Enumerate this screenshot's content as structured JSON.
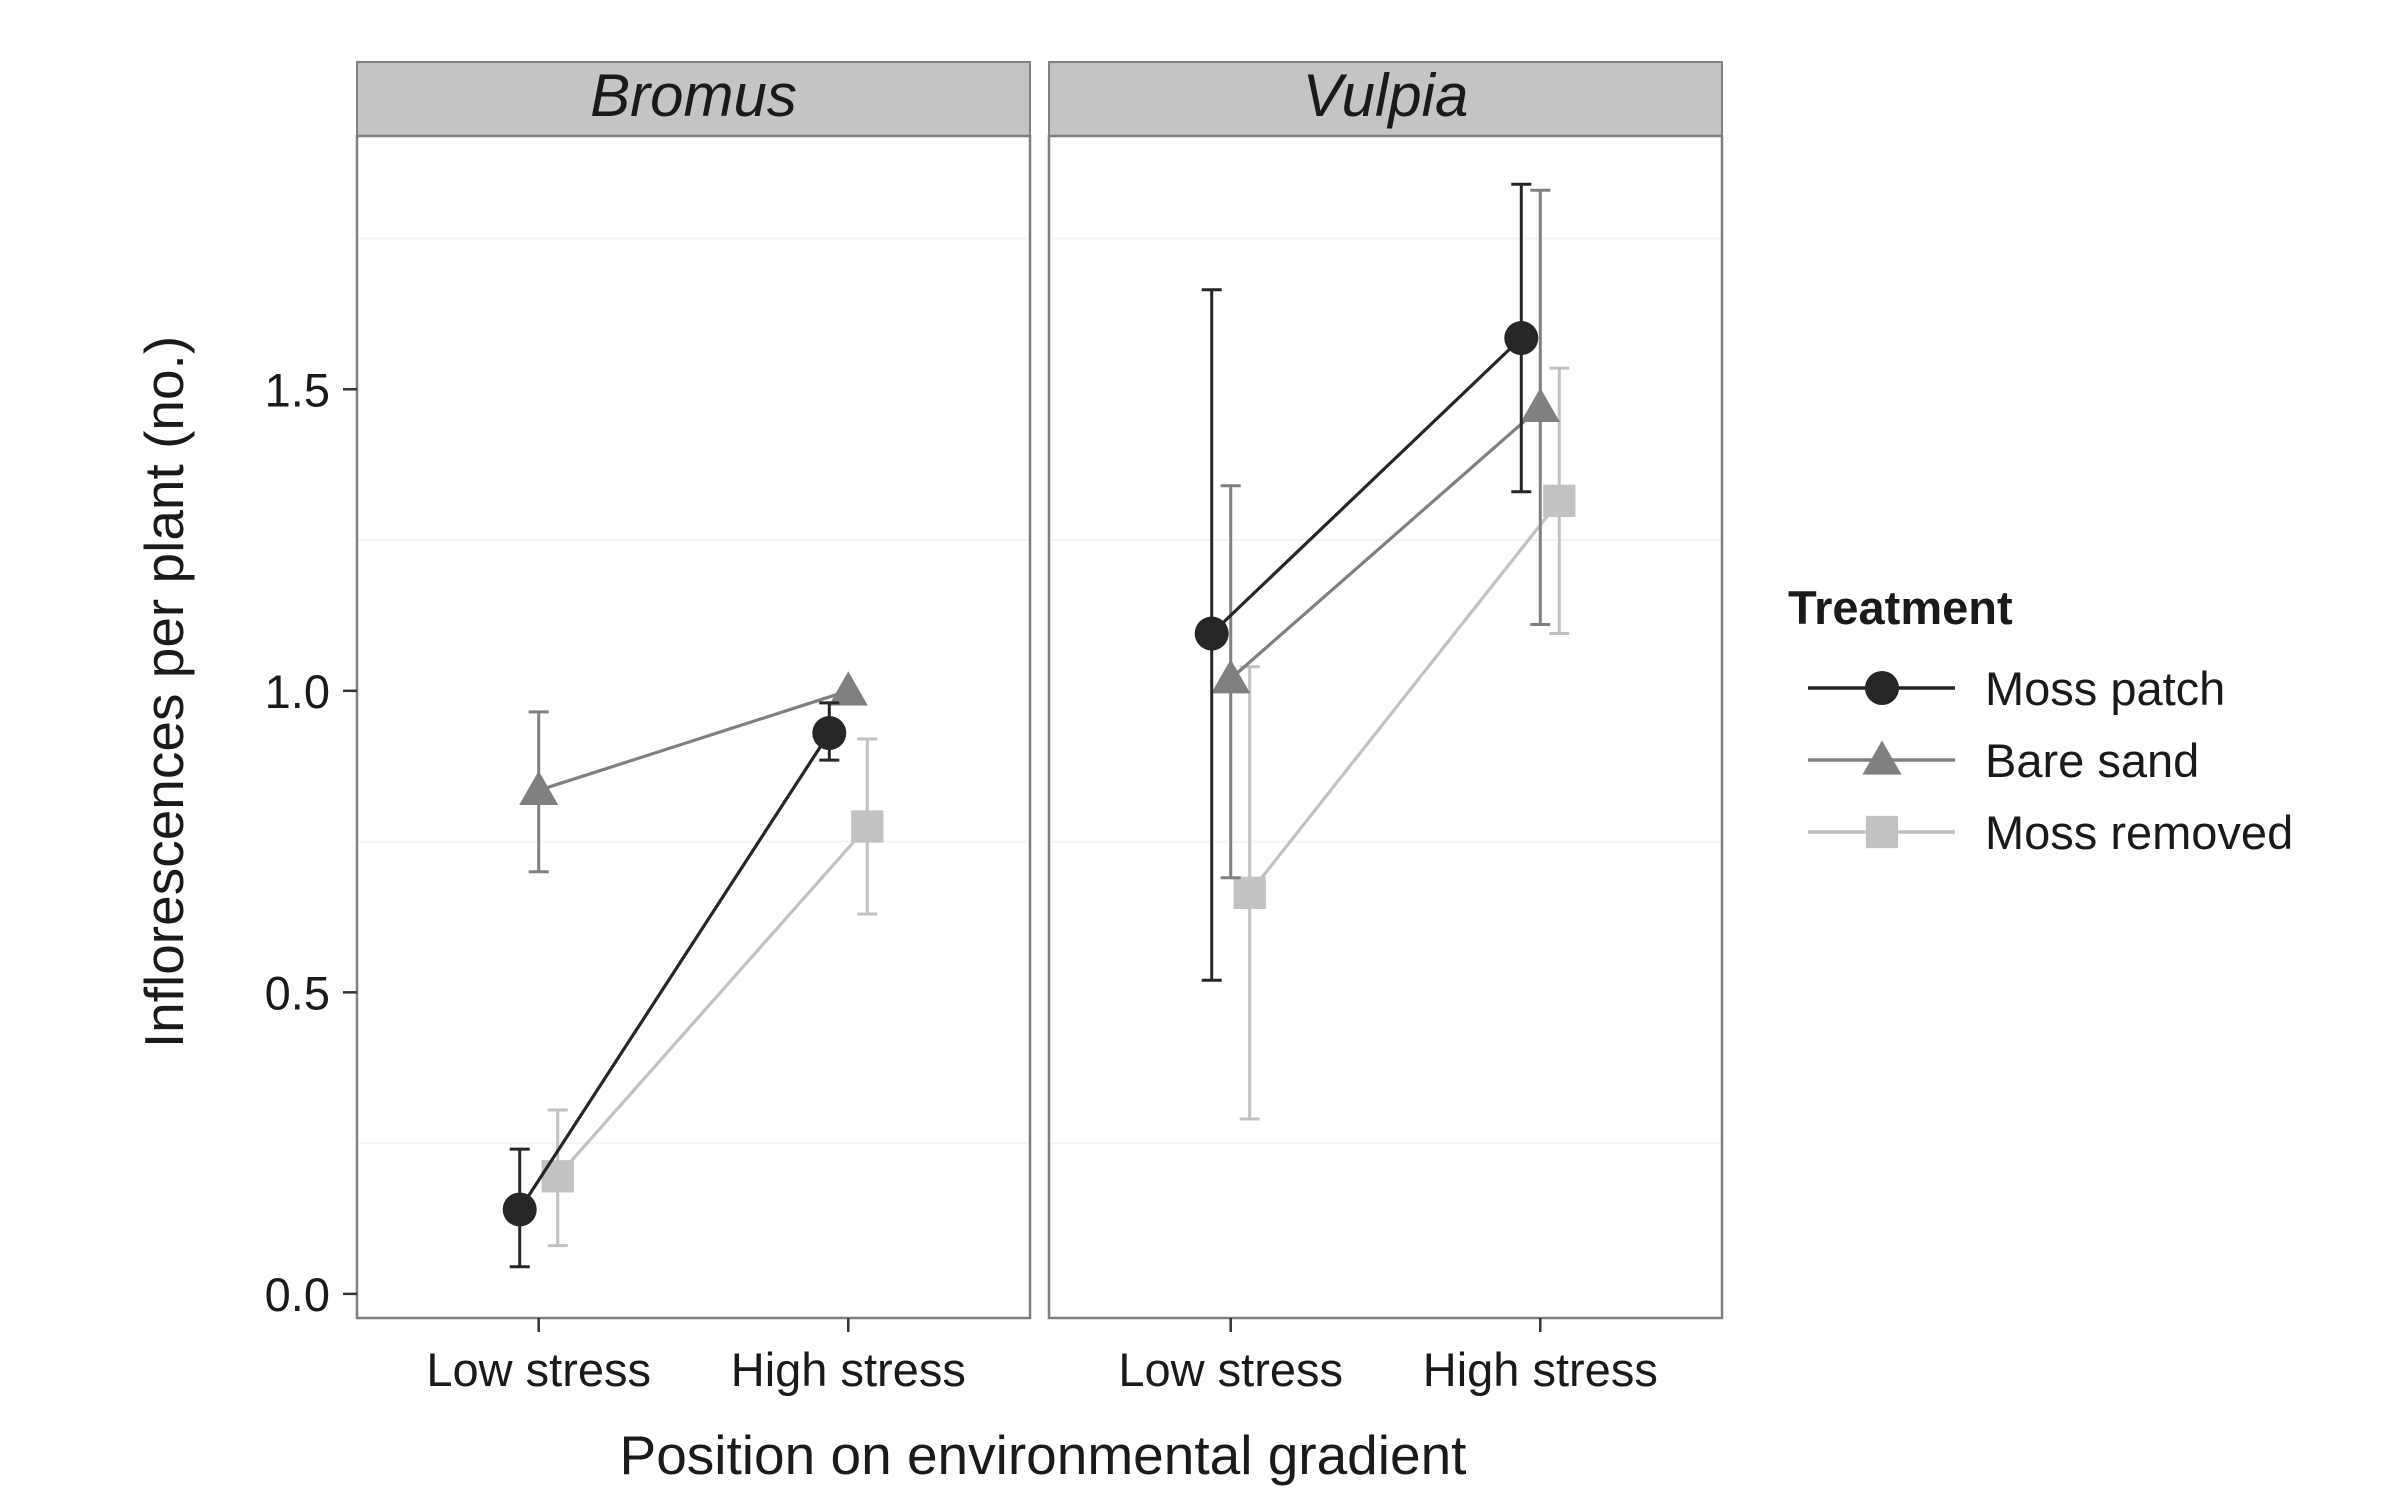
{
  "chart_data": {
    "type": "line",
    "ylabel": "Inflorescences per plant (no.)",
    "xlabel": "Position on environmental gradient",
    "x_categories": [
      "Low stress",
      "High stress"
    ],
    "ylim": [
      -0.04,
      1.92
    ],
    "y_ticks": [
      0.0,
      0.5,
      1.0,
      1.5
    ],
    "y_tick_labels": [
      "0.0",
      "0.5",
      "1.0",
      "1.5"
    ],
    "grid": true,
    "legend": {
      "title": "Treatment",
      "placement": "right"
    },
    "series": [
      {
        "name": "Moss patch",
        "color": "#262626",
        "shape": "circle"
      },
      {
        "name": "Bare sand",
        "color": "#808080",
        "shape": "triangle"
      },
      {
        "name": "Moss removed",
        "color": "#c2c2c2",
        "shape": "square"
      }
    ],
    "facets": [
      {
        "label": "Bromus",
        "series": [
          {
            "name": "Moss patch",
            "points": [
              {
                "x": "Low stress",
                "y": 0.14,
                "ymin": 0.045,
                "ymax": 0.24
              },
              {
                "x": "High stress",
                "y": 0.93,
                "ymin": 0.885,
                "ymax": 0.98
              }
            ]
          },
          {
            "name": "Bare sand",
            "points": [
              {
                "x": "Low stress",
                "y": 0.835,
                "ymin": 0.7,
                "ymax": 0.965
              },
              {
                "x": "High stress",
                "y": 1.0,
                "ymin": 1.0,
                "ymax": 1.0
              }
            ]
          },
          {
            "name": "Moss removed",
            "points": [
              {
                "x": "Low stress",
                "y": 0.195,
                "ymin": 0.08,
                "ymax": 0.305
              },
              {
                "x": "High stress",
                "y": 0.775,
                "ymin": 0.63,
                "ymax": 0.92
              }
            ]
          }
        ]
      },
      {
        "label": "Vulpia",
        "series": [
          {
            "name": "Moss patch",
            "points": [
              {
                "x": "Low stress",
                "y": 1.095,
                "ymin": 0.52,
                "ymax": 1.665
              },
              {
                "x": "High stress",
                "y": 1.585,
                "ymin": 1.33,
                "ymax": 1.84
              }
            ]
          },
          {
            "name": "Bare sand",
            "points": [
              {
                "x": "Low stress",
                "y": 1.02,
                "ymin": 0.69,
                "ymax": 1.34
              },
              {
                "x": "High stress",
                "y": 1.47,
                "ymin": 1.11,
                "ymax": 1.83
              }
            ]
          },
          {
            "name": "Moss removed",
            "points": [
              {
                "x": "Low stress",
                "y": 0.665,
                "ymin": 0.29,
                "ymax": 1.04
              },
              {
                "x": "High stress",
                "y": 1.315,
                "ymin": 1.095,
                "ymax": 1.535
              }
            ]
          }
        ]
      }
    ]
  }
}
